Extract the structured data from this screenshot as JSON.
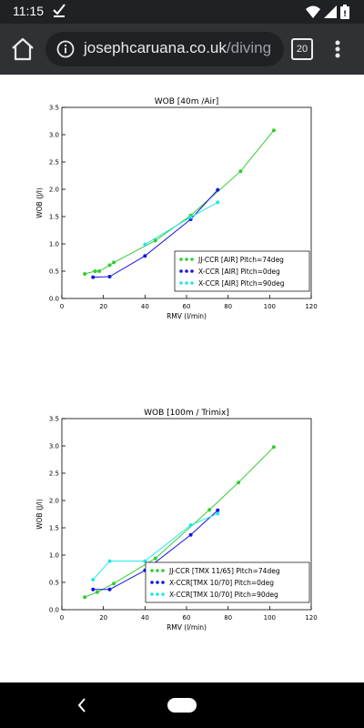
{
  "status": {
    "time": "11:15"
  },
  "browser": {
    "url_host": "josephcaruana.co.uk",
    "url_path": "/diving",
    "tab_count": "20"
  },
  "chart_data": [
    {
      "type": "line",
      "title": "WOB [40m /Air]",
      "xlabel": "RMV (l/min)",
      "ylabel": "WOB (J/l)",
      "xlim": [
        0,
        120
      ],
      "ylim": [
        0,
        3.5
      ],
      "xticks": [
        0,
        20,
        40,
        60,
        80,
        100,
        120
      ],
      "yticks": [
        0.0,
        0.5,
        1.0,
        1.5,
        2.0,
        2.5,
        3.0,
        3.5
      ],
      "legend_position": "lower-right",
      "series": [
        {
          "name": "JJ-CCR [AIR] Pitch=74deg",
          "color": "#33cc33",
          "x": [
            11,
            16,
            18,
            23,
            25,
            45,
            62,
            86,
            102
          ],
          "y": [
            0.45,
            0.5,
            0.5,
            0.61,
            0.66,
            1.06,
            1.52,
            2.33,
            3.08
          ]
        },
        {
          "name": "X-CCR [AIR] Pitch=0deg",
          "color": "#1414e6",
          "x": [
            15,
            23,
            40,
            62,
            75
          ],
          "y": [
            0.39,
            0.4,
            0.78,
            1.45,
            1.99
          ]
        },
        {
          "name": "X-CCR [AIR] Pitch=90deg",
          "color": "#22e6e6",
          "x": [
            40,
            62,
            75
          ],
          "y": [
            0.99,
            1.49,
            1.76
          ]
        }
      ]
    },
    {
      "type": "line",
      "title": "WOB [100m / Trimix]",
      "xlabel": "RMV (l/min)",
      "ylabel": "WOB (J/l)",
      "xlim": [
        0,
        120
      ],
      "ylim": [
        0,
        3.5
      ],
      "xticks": [
        0,
        20,
        40,
        60,
        80,
        100,
        120
      ],
      "yticks": [
        0.0,
        0.5,
        1.0,
        1.5,
        2.0,
        2.5,
        3.0,
        3.5
      ],
      "legend_position": "lower-right",
      "series": [
        {
          "name": "JJ-CCR [TMX 11/65] Pitch=74deg",
          "color": "#33cc33",
          "x": [
            11,
            17,
            25,
            45,
            71,
            85,
            102
          ],
          "y": [
            0.23,
            0.32,
            0.48,
            0.94,
            1.83,
            2.33,
            2.98
          ]
        },
        {
          "name": "X-CCR[TMX 10/70] Pitch=0deg",
          "color": "#1414e6",
          "x": [
            15,
            23,
            40,
            62,
            75
          ],
          "y": [
            0.37,
            0.37,
            0.72,
            1.37,
            1.82
          ]
        },
        {
          "name": "X-CCR[TMX 10/70] Pitch=90deg",
          "color": "#22e6e6",
          "x": [
            15,
            23,
            40,
            62,
            75
          ],
          "y": [
            0.55,
            0.89,
            0.89,
            1.55,
            1.76
          ]
        }
      ]
    }
  ]
}
